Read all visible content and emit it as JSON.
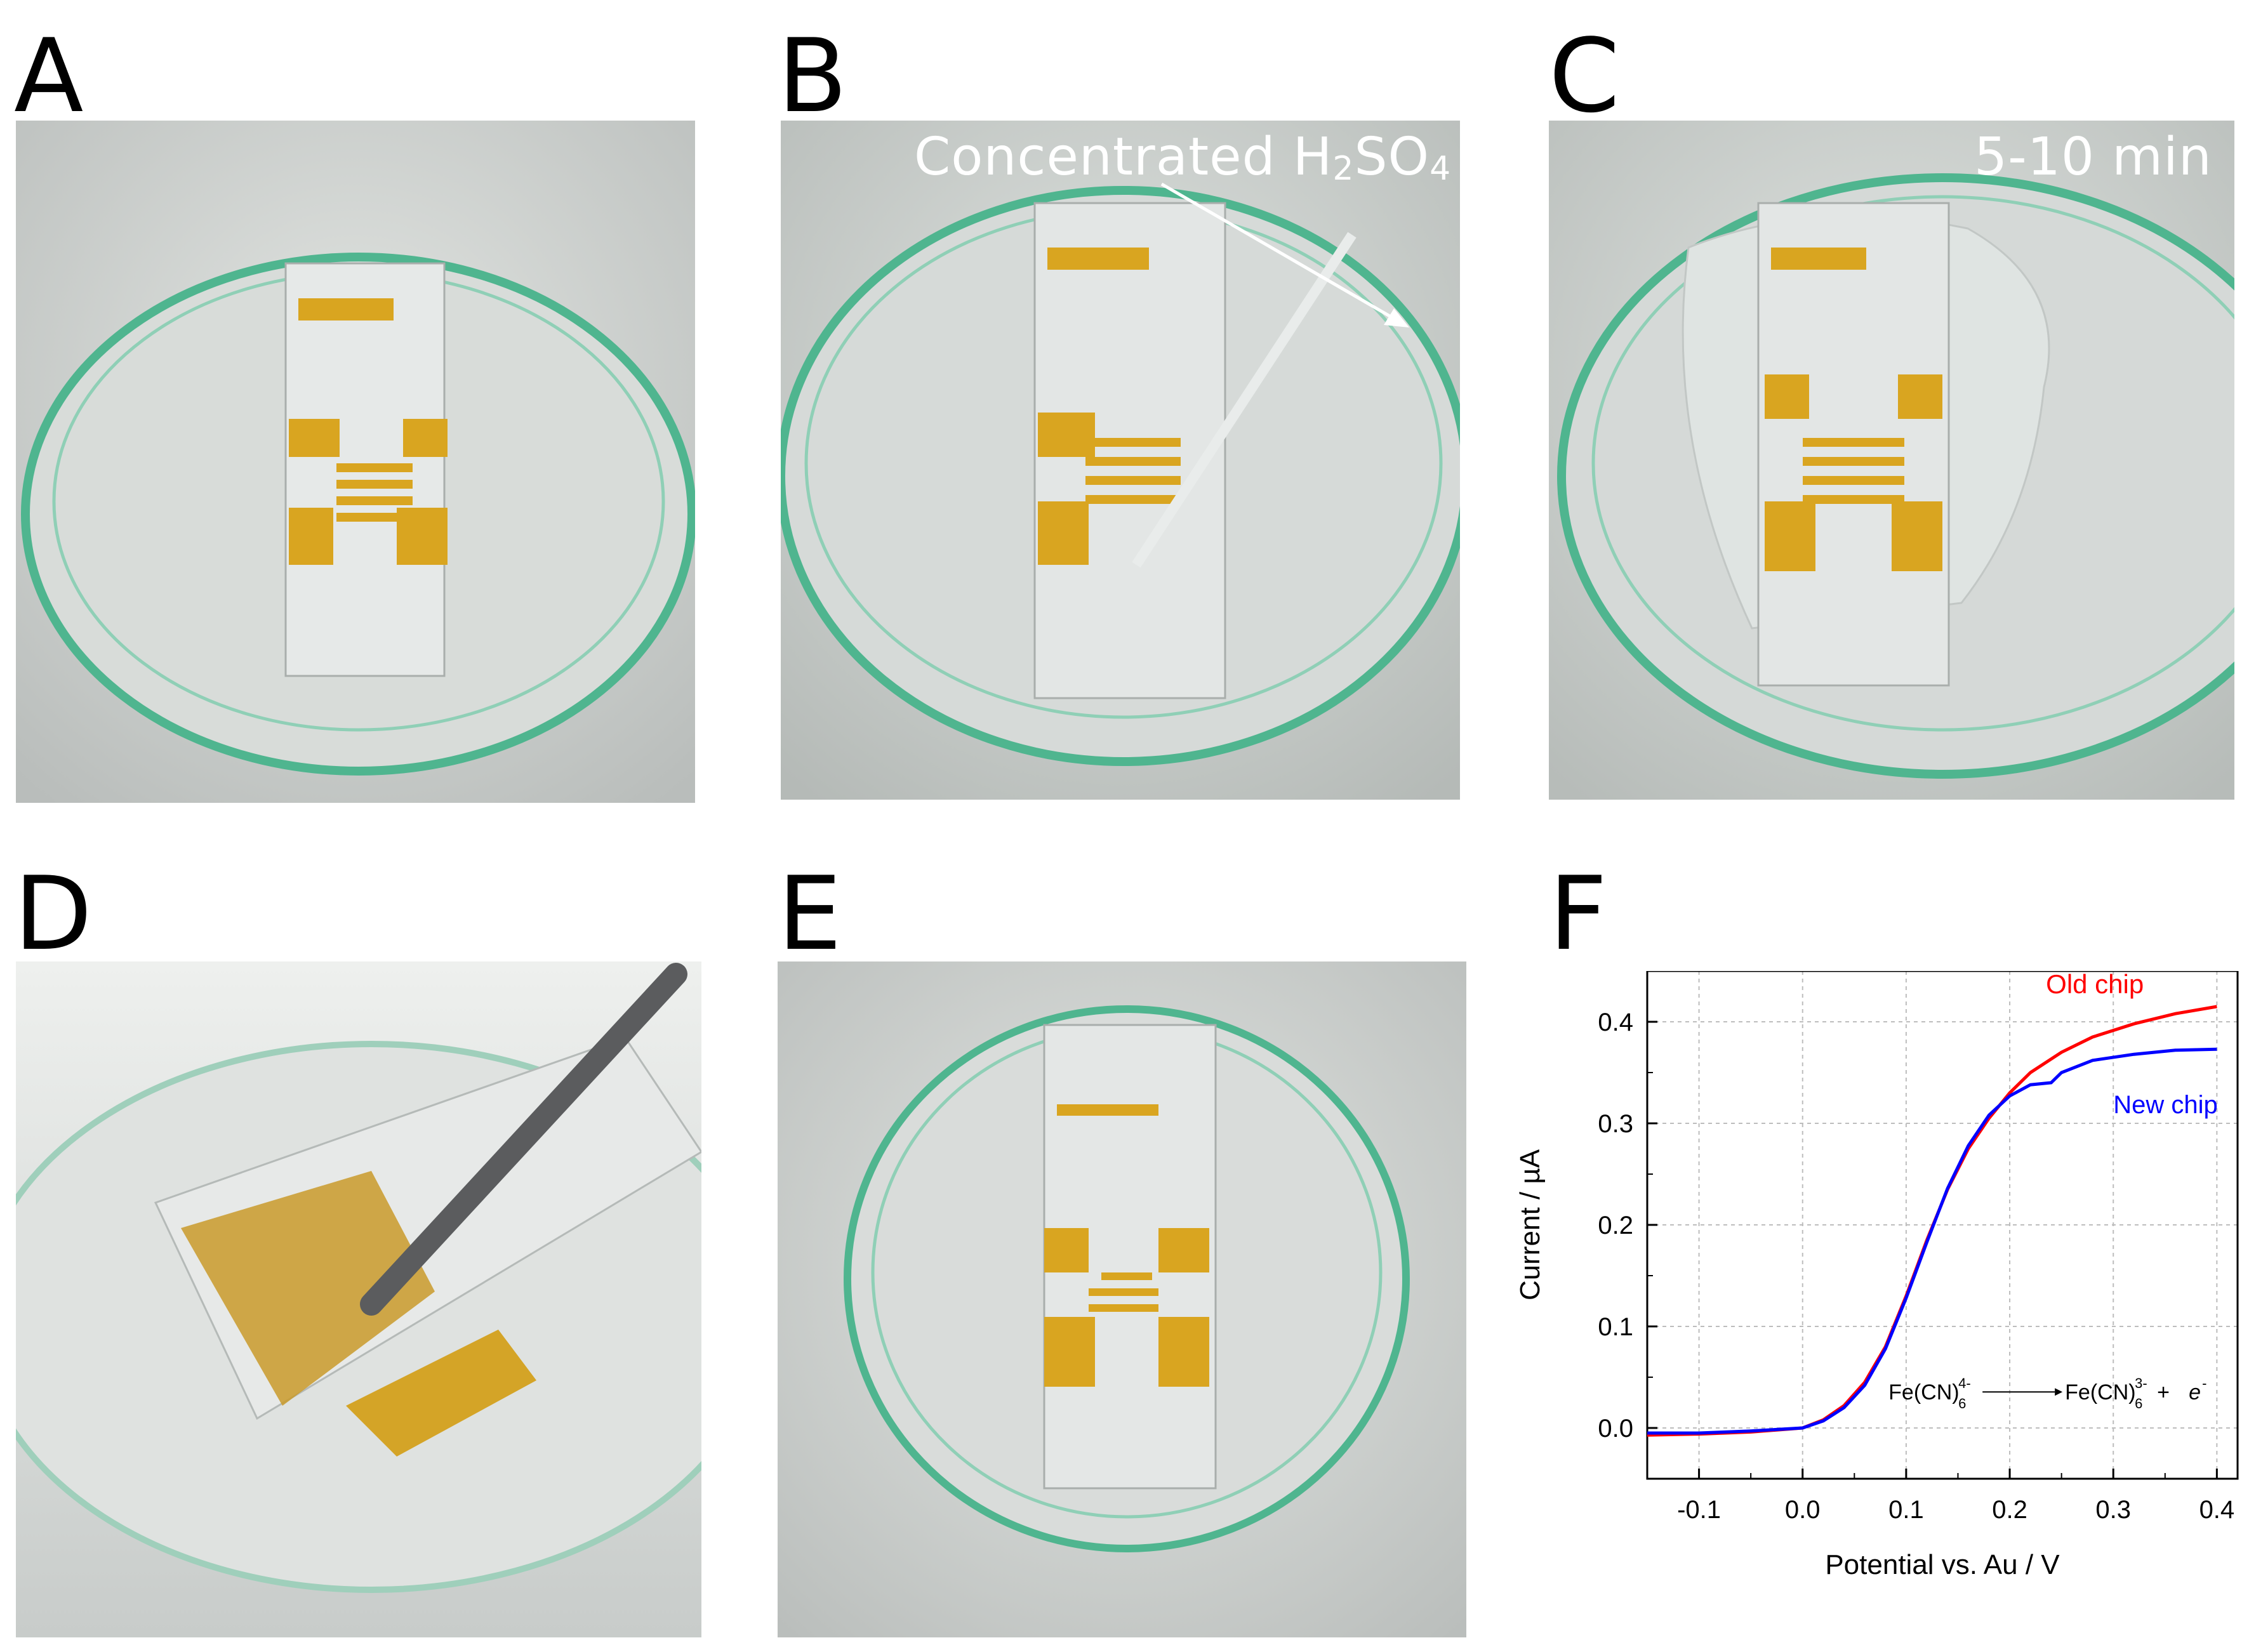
{
  "panels": {
    "A": {
      "label": "A"
    },
    "B": {
      "label": "B",
      "overlay_main": "Concentrated H",
      "overlay_sub1": "2",
      "overlay_mid": "SO",
      "overlay_sub2": "4"
    },
    "C": {
      "label": "C",
      "overlay": "5-10 min"
    },
    "D": {
      "label": "D"
    },
    "E": {
      "label": "E"
    },
    "F": {
      "label": "F"
    }
  },
  "colors": {
    "old_chip": "#ff0000",
    "new_chip": "#0000ff",
    "dish_rim": "#3aa37a",
    "gold": "#d9a520",
    "grid": "#bdbdbd"
  },
  "chart_data": {
    "type": "line",
    "xlabel": "Potential vs. Au / V",
    "ylabel": "Current / µA",
    "xlim": [
      -0.15,
      0.42
    ],
    "ylim": [
      -0.05,
      0.45
    ],
    "xticks": [
      "-0.1",
      "0.0",
      "0.1",
      "0.2",
      "0.3",
      "0.4"
    ],
    "xtick_values": [
      -0.1,
      0.0,
      0.1,
      0.2,
      0.3,
      0.4
    ],
    "yticks": [
      "0.0",
      "0.1",
      "0.2",
      "0.3",
      "0.4"
    ],
    "ytick_values": [
      0.0,
      0.1,
      0.2,
      0.3,
      0.4
    ],
    "grid": true,
    "series": [
      {
        "name": "Old chip",
        "x": [
          -0.15,
          -0.1,
          -0.05,
          0.0,
          0.02,
          0.04,
          0.06,
          0.08,
          0.1,
          0.12,
          0.14,
          0.16,
          0.18,
          0.2,
          0.22,
          0.25,
          0.28,
          0.32,
          0.36,
          0.4
        ],
        "y": [
          -0.007,
          -0.006,
          -0.004,
          0.0,
          0.008,
          0.022,
          0.045,
          0.08,
          0.13,
          0.185,
          0.235,
          0.275,
          0.305,
          0.33,
          0.35,
          0.37,
          0.385,
          0.398,
          0.408,
          0.415
        ]
      },
      {
        "name": "New chip",
        "x": [
          -0.15,
          -0.1,
          -0.05,
          0.0,
          0.02,
          0.04,
          0.06,
          0.08,
          0.1,
          0.12,
          0.14,
          0.16,
          0.18,
          0.2,
          0.22,
          0.24,
          0.25,
          0.28,
          0.32,
          0.36,
          0.4
        ],
        "y": [
          -0.005,
          -0.005,
          -0.003,
          0.0,
          0.007,
          0.02,
          0.042,
          0.078,
          0.128,
          0.183,
          0.236,
          0.278,
          0.308,
          0.327,
          0.338,
          0.34,
          0.35,
          0.362,
          0.368,
          0.372,
          0.373
        ]
      }
    ],
    "legend_old": "Old chip",
    "legend_new": "New chip",
    "equation": {
      "left": "Fe(CN)",
      "left_sub": "6",
      "left_sup": "4-",
      "right": "Fe(CN)",
      "right_sub": "6",
      "right_sup": "3-",
      "tail": " + ",
      "electron": "e",
      "electron_sup": "-"
    }
  }
}
